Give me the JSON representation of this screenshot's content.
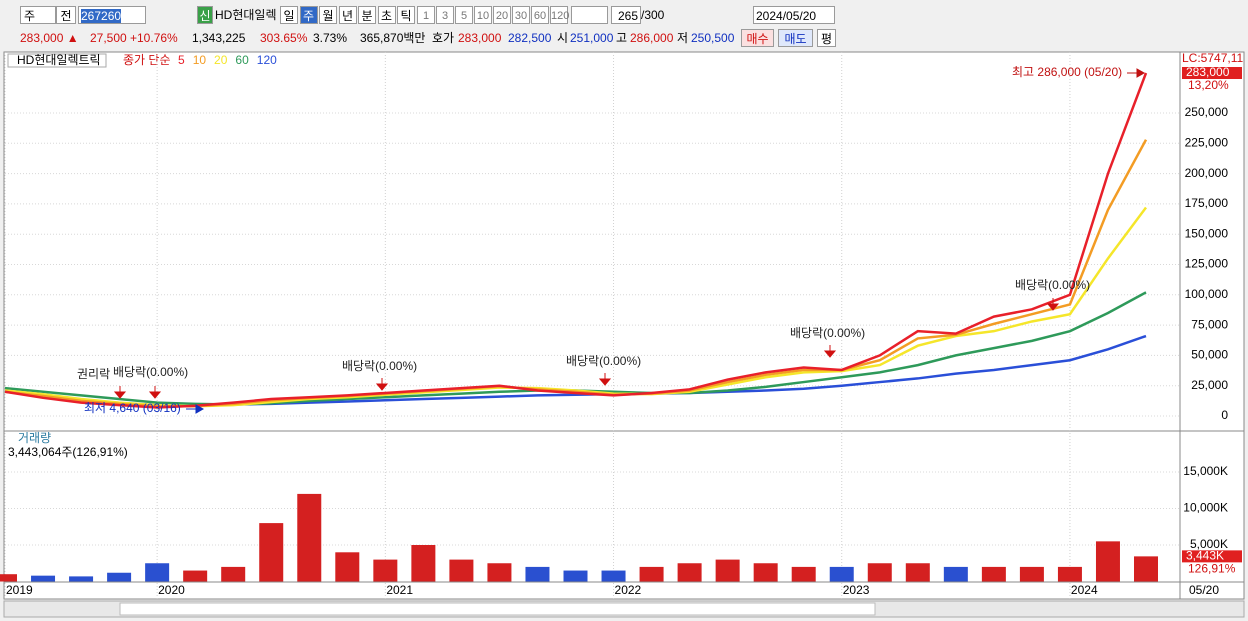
{
  "toolbar": {
    "market": "주",
    "prev": "전",
    "code": "267260",
    "new_badge": "신",
    "name": "HD현대일렉",
    "periods": [
      "일",
      "주",
      "월",
      "년",
      "분",
      "초",
      "틱"
    ],
    "intervals": [
      "1",
      "3",
      "5",
      "10",
      "20",
      "30",
      "60",
      "120"
    ],
    "count": "265",
    "count_max": "/300",
    "date": "2024/05/20"
  },
  "quote": {
    "price": "283,000 ▲",
    "change": "27,500",
    "change_pct": "+10.76%",
    "volume": "1,343,225",
    "volume_ratio": "303.65%",
    "turnover": "3.73%",
    "amount": "365,870백만",
    "bid_label": "호가",
    "ask": "283,000",
    "bid": "282,500",
    "open_label": "시",
    "open": "251,000",
    "high_label": "고",
    "high": "286,000",
    "low_label": "저",
    "low": "250,500",
    "buy": "매수",
    "sell": "매도",
    "avg": "평"
  },
  "chart_data": [
    {
      "type": "line",
      "title": "HD현대일렉트릭",
      "subtitle": "종가 단순",
      "lc_label": "LC:5747,11",
      "last_label": "283,000",
      "last_value": 283000,
      "last_pct": "13,20%",
      "annotations": [
        "최고 286,000 (05/20)",
        "최저 4,640 (03/16)",
        "권리락",
        "배당락(0.00%)",
        "배당락(0.00%)",
        "배당락(0.00%)",
        "배당락(0.00%)",
        "배당락(0.00%)"
      ],
      "categories": [
        "2019",
        null,
        null,
        null,
        "2020",
        null,
        null,
        null,
        null,
        null,
        "2021",
        null,
        null,
        null,
        null,
        null,
        "2022",
        null,
        null,
        null,
        null,
        null,
        "2023",
        null,
        null,
        null,
        null,
        null,
        "2024",
        null,
        "05/20"
      ],
      "series": [
        {
          "name": "5",
          "color": "#e8202a",
          "values": [
            20000,
            15000,
            11000,
            9000,
            7000,
            8500,
            11000,
            14000,
            15500,
            17000,
            19000,
            21000,
            23000,
            25000,
            21000,
            19000,
            17000,
            19000,
            22000,
            30000,
            36000,
            40000,
            38000,
            50000,
            70000,
            68000,
            82000,
            88000,
            100000,
            200000,
            283000
          ]
        },
        {
          "name": "10",
          "color": "#f39c24",
          "values": [
            20000,
            16500,
            12500,
            10000,
            8000,
            8000,
            10000,
            13000,
            15000,
            16500,
            18500,
            20500,
            22500,
            24500,
            22000,
            20000,
            17500,
            18500,
            21000,
            28000,
            34000,
            38000,
            38000,
            46000,
            64000,
            67000,
            76000,
            84000,
            92000,
            170000,
            228000
          ]
        },
        {
          "name": "20",
          "color": "#f5e62a",
          "values": [
            21000,
            18000,
            14000,
            11000,
            9000,
            8000,
            9000,
            11500,
            14000,
            15500,
            17500,
            19500,
            21500,
            23500,
            23000,
            21000,
            18500,
            18000,
            20000,
            26000,
            32000,
            36000,
            37000,
            42000,
            58000,
            66000,
            70000,
            78000,
            84000,
            130000,
            172000
          ]
        },
        {
          "name": "60",
          "color": "#2e9a5a",
          "values": [
            23000,
            20000,
            17000,
            14000,
            11000,
            10000,
            9500,
            10500,
            12500,
            14000,
            15500,
            17000,
            18500,
            20000,
            21000,
            21000,
            20000,
            19000,
            19000,
            21000,
            24000,
            28000,
            32000,
            36000,
            42000,
            50000,
            56000,
            62000,
            70000,
            85000,
            102000
          ]
        },
        {
          "name": "120",
          "color": "#2a4fd8",
          "values": [
            null,
            null,
            null,
            null,
            null,
            9000,
            9500,
            10000,
            11000,
            12000,
            13000,
            14000,
            15000,
            16000,
            17000,
            17500,
            18000,
            18500,
            19000,
            20000,
            21000,
            22500,
            25000,
            28000,
            31000,
            35000,
            38000,
            42000,
            46000,
            55000,
            66000
          ]
        }
      ],
      "ylim": [
        -11550,
        300330
      ],
      "yticks": [
        0,
        {
          "value": 25000,
          "label": "25,000"
        },
        {
          "value": 50000,
          "label": "50,000"
        },
        {
          "value": 75000,
          "label": "75,000"
        },
        {
          "value": 100000,
          "label": "100,000"
        },
        {
          "value": 125000,
          "label": "125,000"
        },
        {
          "value": 150000,
          "label": "150,000"
        },
        {
          "value": 175000,
          "label": "175,000"
        },
        {
          "value": 200000,
          "label": "200,000"
        },
        {
          "value": 225000,
          "label": "225,000"
        },
        {
          "value": 250000,
          "label": "250,000"
        }
      ],
      "grid": true
    },
    {
      "type": "bar",
      "title": "거래량",
      "subtitle": "3,443,064주(126,91%)",
      "last_label": "3,443K",
      "last_value": 3443,
      "last_pct": "126,91%",
      "up_color": "#d42020",
      "down_color": "#2a50d0",
      "values": [
        1000,
        800,
        700,
        1200,
        2500,
        1500,
        2000,
        8000,
        12000,
        4000,
        3000,
        5000,
        3000,
        2500,
        2000,
        1500,
        1500,
        2000,
        2500,
        3000,
        2500,
        2000,
        2000,
        2500,
        2500,
        2000,
        2000,
        2000,
        2000,
        5500,
        3443
      ],
      "ylim": [
        0,
        20480
      ],
      "yticks": [
        {
          "value": 5000,
          "label": "5,000K"
        },
        {
          "value": 10000,
          "label": "10,000K"
        },
        {
          "value": 15000,
          "label": "15,000K"
        }
      ],
      "grid": true
    }
  ]
}
